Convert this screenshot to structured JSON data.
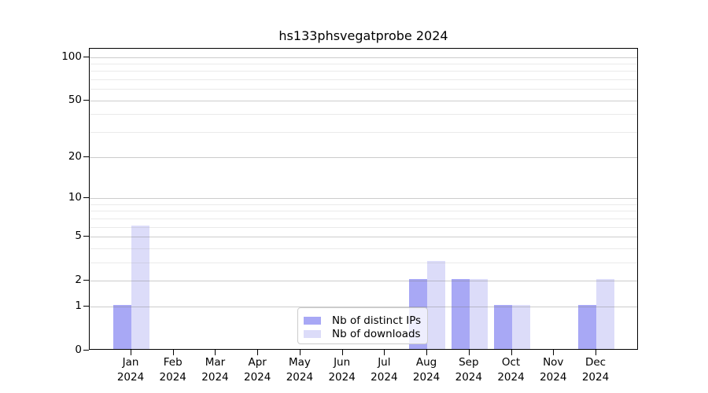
{
  "title": "hs133phsvegatprobe 2024",
  "chart_data": {
    "type": "bar",
    "title": "hs133phsvegatprobe 2024",
    "year": "2024",
    "categories": [
      "Jan",
      "Feb",
      "Mar",
      "Apr",
      "May",
      "Jun",
      "Jul",
      "Aug",
      "Sep",
      "Oct",
      "Nov",
      "Dec"
    ],
    "series": [
      {
        "name": "Nb of distinct IPs",
        "color": "#a8a8f5",
        "values": [
          1,
          0,
          0,
          0,
          0,
          0,
          0,
          2,
          2,
          1,
          0,
          1
        ]
      },
      {
        "name": "Nb of downloads",
        "color": "#dcdcf9",
        "values": [
          6,
          0,
          0,
          0,
          0,
          0,
          0,
          3,
          2,
          1,
          0,
          2
        ]
      }
    ],
    "xlabel": "",
    "ylabel": "",
    "yscale": "log1p",
    "ylim": [
      0,
      114
    ],
    "y_major_ticks": [
      0,
      1,
      2,
      5,
      10,
      20,
      50,
      100
    ],
    "y_minor_ticks": [
      3,
      4,
      6,
      7,
      8,
      9,
      30,
      40,
      60,
      70,
      80,
      90
    ],
    "grid": "horizontal",
    "legend_position": "lower-center"
  },
  "legend": {
    "items": [
      {
        "label": "Nb of distinct IPs",
        "color": "#a8a8f5"
      },
      {
        "label": "Nb of downloads",
        "color": "#dcdcf9"
      }
    ]
  }
}
